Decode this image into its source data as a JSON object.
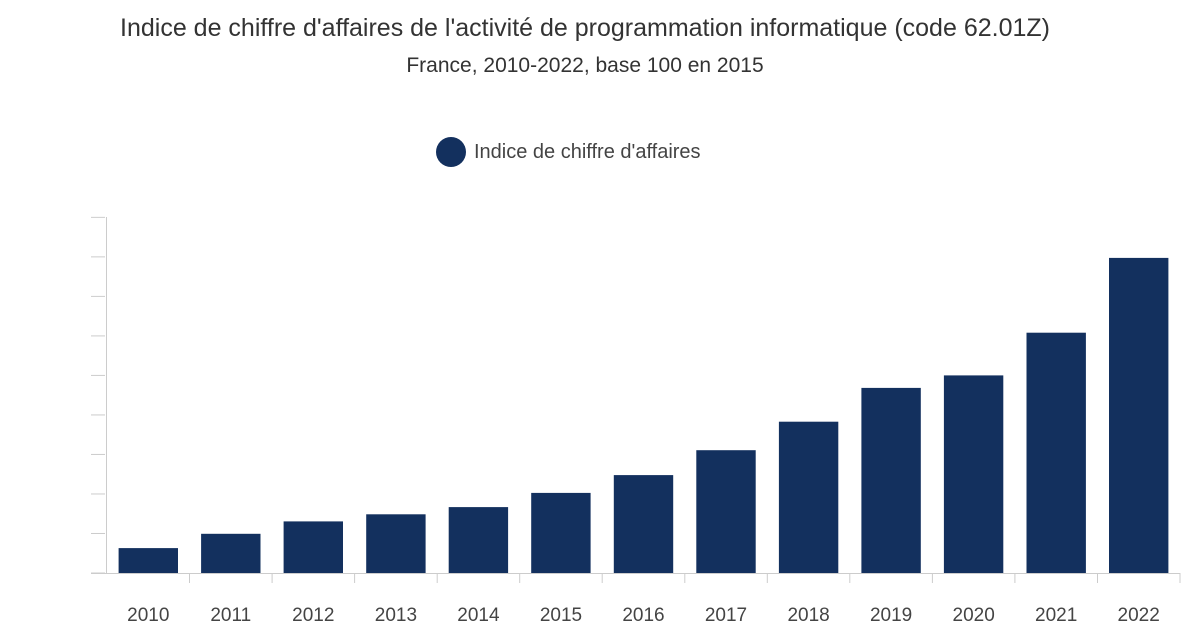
{
  "chart_data": {
    "type": "bar",
    "title": "Indice de chiffre d'affaires de l'activité de programmation informatique (code 62.01Z)",
    "subtitle": "France, 2010-2022, base 100 en 2015",
    "xlabel": "",
    "ylabel": "",
    "categories": [
      "2010",
      "2011",
      "2012",
      "2013",
      "2014",
      "2015",
      "2016",
      "2017",
      "2018",
      "2019",
      "2020",
      "2021",
      "2022"
    ],
    "series": [
      {
        "name": "Indice de chiffre d'affaires",
        "color": "#13305e",
        "values": [
          69,
          77,
          84,
          88,
          92,
          100,
          110,
          124,
          140,
          159,
          166,
          190,
          232
        ]
      }
    ],
    "ylim": [
      55,
      255
    ],
    "y_tick_step": 22.2,
    "grid": false,
    "legend_position": "top-center"
  }
}
